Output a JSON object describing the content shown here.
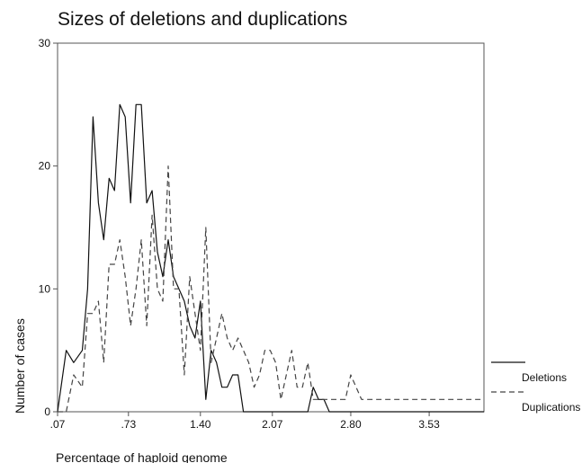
{
  "chart_data": {
    "type": "line",
    "title": "Sizes of deletions and duplications",
    "xlabel": "Percentage of haploid genome",
    "ylabel": "Number of cases",
    "xlim": [
      0.07,
      4.04
    ],
    "ylim": [
      0,
      30
    ],
    "x_ticks": [
      0.07,
      0.73,
      1.4,
      2.07,
      2.8,
      3.53
    ],
    "x_tick_labels": [
      ".07",
      ".73",
      "1.40",
      "2.07",
      "2.80",
      "3.53"
    ],
    "y_ticks": [
      0,
      10,
      20,
      30
    ],
    "y_tick_labels": [
      "0",
      "10",
      "20",
      "30"
    ],
    "grid": false,
    "legend_position": "bottom-right outside",
    "series": [
      {
        "name": "Deletions",
        "line_style": "solid",
        "color": "#111111",
        "x": [
          0.07,
          0.15,
          0.22,
          0.3,
          0.35,
          0.4,
          0.45,
          0.5,
          0.55,
          0.6,
          0.65,
          0.7,
          0.75,
          0.8,
          0.85,
          0.9,
          0.95,
          1.0,
          1.05,
          1.1,
          1.15,
          1.2,
          1.25,
          1.3,
          1.35,
          1.4,
          1.45,
          1.5,
          1.55,
          1.6,
          1.65,
          1.7,
          1.75,
          1.8,
          1.85,
          1.9,
          1.95,
          2.0,
          2.05,
          2.1,
          2.15,
          2.2,
          2.25,
          2.3,
          2.35,
          2.4,
          2.45,
          2.5,
          2.55,
          2.6,
          2.65,
          2.7,
          2.75,
          2.8,
          2.9,
          3.0,
          3.2,
          3.4,
          3.6,
          3.8,
          4.04
        ],
        "y": [
          0,
          5,
          4,
          5,
          10,
          24,
          17,
          14,
          19,
          18,
          25,
          24,
          17,
          25,
          25,
          17,
          18,
          13,
          11,
          14,
          11,
          10,
          9,
          7,
          6,
          9,
          1,
          5,
          4,
          2,
          2,
          3,
          3,
          0,
          0,
          0,
          0,
          0,
          0,
          0,
          0,
          0,
          0,
          0,
          0,
          0,
          2,
          1,
          1,
          0,
          0,
          0,
          0,
          0,
          0,
          0,
          0,
          0,
          0,
          0,
          0
        ]
      },
      {
        "name": "Duplications",
        "line_style": "dashed",
        "color": "#444444",
        "x": [
          0.07,
          0.15,
          0.22,
          0.3,
          0.35,
          0.4,
          0.45,
          0.5,
          0.55,
          0.6,
          0.65,
          0.7,
          0.75,
          0.8,
          0.85,
          0.9,
          0.95,
          1.0,
          1.05,
          1.1,
          1.15,
          1.2,
          1.25,
          1.3,
          1.35,
          1.4,
          1.45,
          1.5,
          1.55,
          1.6,
          1.65,
          1.7,
          1.75,
          1.8,
          1.85,
          1.9,
          1.95,
          2.0,
          2.05,
          2.1,
          2.15,
          2.2,
          2.25,
          2.3,
          2.35,
          2.4,
          2.45,
          2.5,
          2.55,
          2.6,
          2.65,
          2.7,
          2.75,
          2.8,
          2.9,
          3.0,
          3.2,
          3.4,
          3.6,
          3.8,
          4.04
        ],
        "y": [
          0,
          0,
          3,
          2,
          8,
          8,
          9,
          4,
          12,
          12,
          14,
          11,
          7,
          10,
          14,
          7,
          16,
          10,
          9,
          20,
          10,
          10,
          3,
          11,
          8,
          5,
          15,
          4,
          6,
          8,
          6,
          5,
          6,
          5,
          4,
          2,
          3,
          5,
          5,
          4,
          1,
          3,
          5,
          2,
          2,
          4,
          1,
          1,
          1,
          1,
          1,
          1,
          1,
          3,
          1,
          1,
          1,
          1,
          1,
          1,
          1
        ]
      }
    ]
  }
}
